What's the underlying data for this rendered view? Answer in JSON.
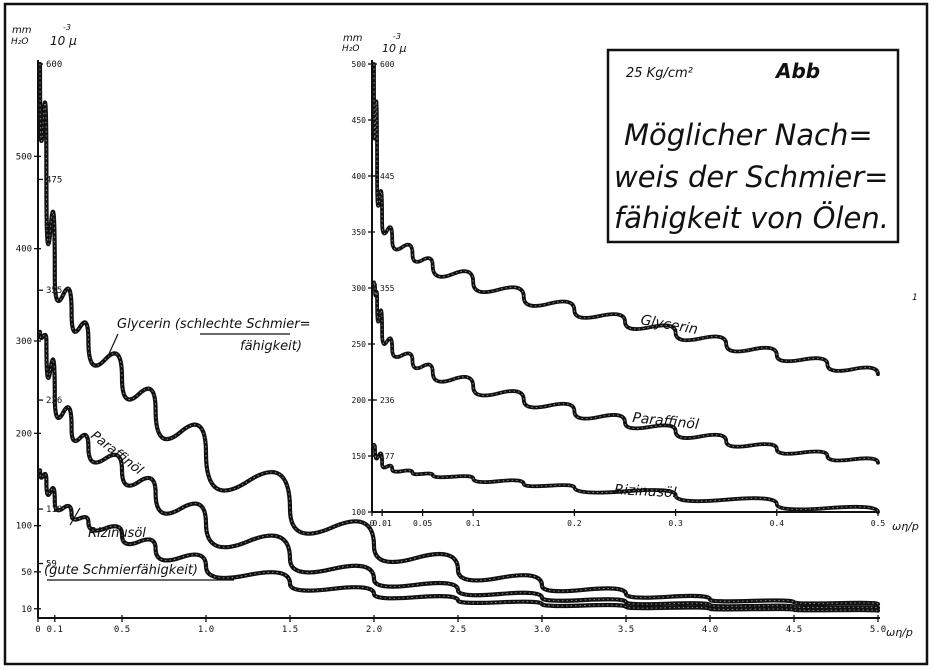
{
  "chart_data": [
    {
      "type": "line",
      "panel": "main",
      "y_unit_top": "mm",
      "y_unit_bottom": "H₂O",
      "y2_unit_exp": "-3",
      "y2_unit": "10 μ",
      "xlabel": "ωη/p",
      "xlim": [
        0,
        5.0
      ],
      "ylim": [
        0,
        600
      ],
      "x_ticks": [
        {
          "v": 0,
          "t": "0"
        },
        {
          "v": 0.1,
          "t": "0.1"
        },
        {
          "v": 0.5,
          "t": "0.5"
        },
        {
          "v": 1.0,
          "t": "1.0"
        },
        {
          "v": 1.5,
          "t": "1.5"
        },
        {
          "v": 2.0,
          "t": "2.0"
        },
        {
          "v": 2.5,
          "t": "2.5"
        },
        {
          "v": 3.0,
          "t": "3.0"
        },
        {
          "v": 3.5,
          "t": "3.5"
        },
        {
          "v": 4.0,
          "t": "4.0"
        },
        {
          "v": 4.5,
          "t": "4.5"
        },
        {
          "v": 5.0,
          "t": "5.0"
        }
      ],
      "y_ticks": [
        {
          "v": 10,
          "t": "10"
        },
        {
          "v": 50,
          "t": "50"
        },
        {
          "v": 100,
          "t": "100"
        },
        {
          "v": 200,
          "t": "200"
        },
        {
          "v": 300,
          "t": "300"
        },
        {
          "v": 400,
          "t": "400"
        },
        {
          "v": 500,
          "t": "500"
        }
      ],
      "y2_ticks": [
        {
          "v": 600,
          "t": "600"
        },
        {
          "v": 475,
          "t": "475"
        },
        {
          "v": 355,
          "t": "355"
        },
        {
          "v": 236,
          "t": "236"
        },
        {
          "v": 118,
          "t": "118"
        },
        {
          "v": 59,
          "t": "59"
        }
      ],
      "grid": false,
      "series": [
        {
          "name": "Glycerin (schlechte Schmierfähigkeit)",
          "x": [
            0.05,
            0.1,
            0.2,
            0.3,
            0.5,
            0.7,
            1.0,
            1.5,
            2.0,
            2.5,
            3.0,
            3.5,
            4.0,
            4.5,
            5.0
          ],
          "y": [
            475,
            370,
            330,
            300,
            260,
            225,
            178,
            118,
            78,
            52,
            35,
            26,
            20,
            17,
            15
          ]
        },
        {
          "name": "Paraffinöl",
          "x": [
            0.05,
            0.1,
            0.2,
            0.3,
            0.5,
            0.7,
            1.0,
            1.5,
            2.0,
            2.5,
            3.0,
            3.5,
            4.0,
            4.5,
            5.0
          ],
          "y": [
            300,
            240,
            205,
            185,
            160,
            135,
            102,
            64,
            42,
            30,
            22,
            17,
            14,
            12,
            11
          ]
        },
        {
          "name": "Rizinusöl (gute Schmierfähigkeit)",
          "x": [
            0.05,
            0.1,
            0.2,
            0.3,
            0.5,
            0.7,
            1.0,
            1.5,
            2.0,
            2.5,
            3.0,
            3.5,
            4.0,
            4.5,
            5.0
          ],
          "y": [
            148,
            126,
            112,
            104,
            90,
            75,
            56,
            37,
            26,
            19,
            15,
            12,
            10,
            9,
            8
          ]
        }
      ]
    },
    {
      "type": "line",
      "panel": "inset",
      "y_unit_top": "mm",
      "y_unit_bottom": "H₂O",
      "y2_unit_exp": "-3",
      "y2_unit": "10 μ",
      "xlabel": "ωη/p",
      "xlim": [
        0,
        0.5
      ],
      "ylim": [
        100,
        500
      ],
      "x_ticks": [
        {
          "v": 0,
          "t": "0"
        },
        {
          "v": 0.01,
          "t": "0.01"
        },
        {
          "v": 0.05,
          "t": "0.05"
        },
        {
          "v": 0.1,
          "t": "0.1"
        },
        {
          "v": 0.2,
          "t": "0.2"
        },
        {
          "v": 0.3,
          "t": "0.3"
        },
        {
          "v": 0.4,
          "t": "0.4"
        },
        {
          "v": 0.5,
          "t": "0.5"
        }
      ],
      "y_ticks": [
        {
          "v": 100,
          "t": "100"
        },
        {
          "v": 150,
          "t": "150"
        },
        {
          "v": 200,
          "t": "200"
        },
        {
          "v": 250,
          "t": "250"
        },
        {
          "v": 300,
          "t": "300"
        },
        {
          "v": 350,
          "t": "350"
        },
        {
          "v": 400,
          "t": "400"
        },
        {
          "v": 450,
          "t": "450"
        },
        {
          "v": 500,
          "t": "500"
        }
      ],
      "y2_ticks": [
        {
          "v": 500,
          "t": "600"
        },
        {
          "v": 400,
          "t": "445"
        },
        {
          "v": 300,
          "t": "355"
        },
        {
          "v": 200,
          "t": "236"
        },
        {
          "v": 150,
          "t": "177"
        }
      ],
      "grid": false,
      "series": [
        {
          "name": "Glycerin",
          "x": [
            0.005,
            0.01,
            0.02,
            0.04,
            0.06,
            0.1,
            0.15,
            0.2,
            0.25,
            0.3,
            0.35,
            0.4,
            0.45,
            0.5
          ],
          "y": [
            400,
            360,
            343,
            330,
            320,
            305,
            292,
            280,
            270,
            260,
            250,
            240,
            232,
            223
          ]
        },
        {
          "name": "Paraffinöl",
          "x": [
            0.003,
            0.005,
            0.01,
            0.02,
            0.04,
            0.06,
            0.1,
            0.15,
            0.2,
            0.25,
            0.3,
            0.35,
            0.4,
            0.45,
            0.5
          ],
          "y": [
            300,
            290,
            260,
            245,
            235,
            225,
            212,
            200,
            190,
            180,
            172,
            163,
            156,
            150,
            144
          ]
        },
        {
          "name": "Rizinusöl",
          "x": [
            0.003,
            0.01,
            0.02,
            0.04,
            0.06,
            0.1,
            0.15,
            0.2,
            0.3,
            0.4,
            0.5
          ],
          "y": [
            157,
            143,
            138,
            135,
            133,
            130,
            125,
            122,
            115,
            107,
            100
          ]
        }
      ]
    }
  ],
  "title_box": {
    "pressure": "25 Kg/cm²",
    "abb": "Abb",
    "lines": [
      "Möglicher Nach=",
      "weis der Schmier=",
      "fähigkeit von Ölen."
    ]
  },
  "annotations": {
    "glycerin_main_1": "Glycerin (schlechte Schmier=",
    "glycerin_main_2": "fähigkeit)",
    "paraffin_main": "Paraffinöl",
    "rizinus_main_1": "Rizinusöl",
    "rizinus_main_2": "(gute Schmierfähigkeit)",
    "glycerin_inset": "Glycerin",
    "paraffin_inset": "Paraffinöl",
    "rizinus_inset": "Rizinusöl",
    "page_mark": "1"
  },
  "colors": {
    "ink": "#111111",
    "paper": "#ffffff"
  }
}
